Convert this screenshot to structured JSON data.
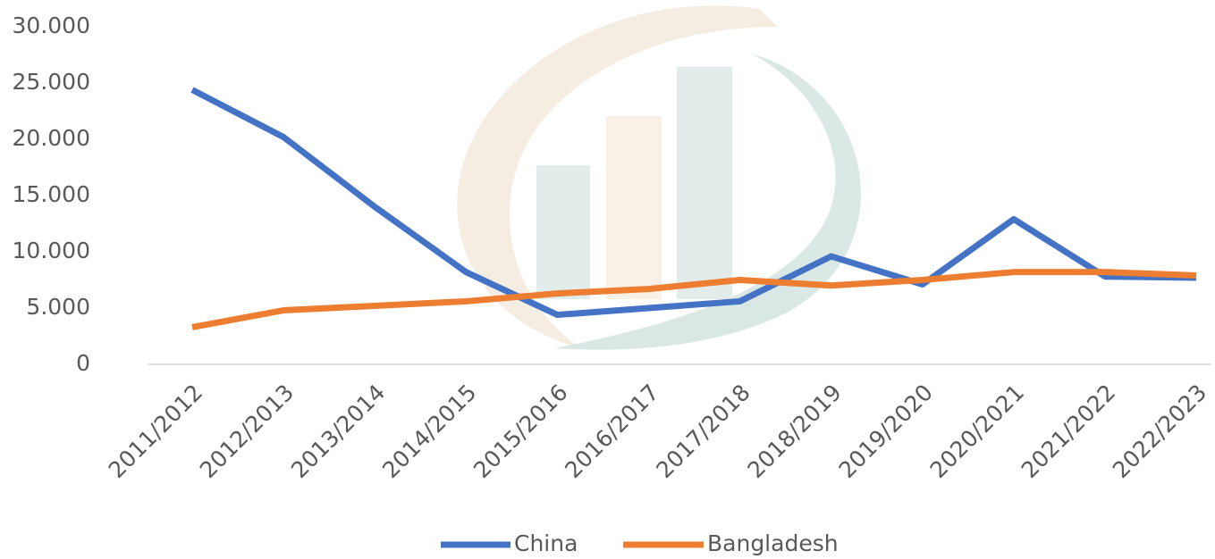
{
  "chart_data": {
    "type": "line",
    "categories": [
      "2011/2012",
      "2012/2013",
      "2013/2014",
      "2014/2015",
      "2015/2016",
      "2016/2017",
      "2017/2018",
      "2018/2019",
      "2019/2020",
      "2020/2021",
      "2021/2022",
      "2022/2023"
    ],
    "series": [
      {
        "name": "China",
        "color": "#4472c4",
        "values": [
          24400,
          20200,
          14000,
          8200,
          4400,
          5000,
          5600,
          9600,
          7100,
          12900,
          7800,
          7700
        ]
      },
      {
        "name": "Bangladesh",
        "color": "#ed7d31",
        "values": [
          3300,
          4800,
          5200,
          5600,
          6300,
          6700,
          7500,
          7000,
          7500,
          8200,
          8200,
          7900
        ]
      }
    ],
    "ylim": [
      0,
      30000
    ],
    "yticks": [
      0,
      {
        "value": 5000,
        "label": "5.000"
      },
      {
        "value": 10000,
        "label": "10.000"
      },
      {
        "value": 15000,
        "label": "15.000"
      },
      {
        "value": 20000,
        "label": "20.000"
      },
      {
        "value": 25000,
        "label": "25.000"
      },
      {
        "value": 30000,
        "label": "30.000"
      }
    ],
    "grid": false,
    "legend": "bottom"
  }
}
